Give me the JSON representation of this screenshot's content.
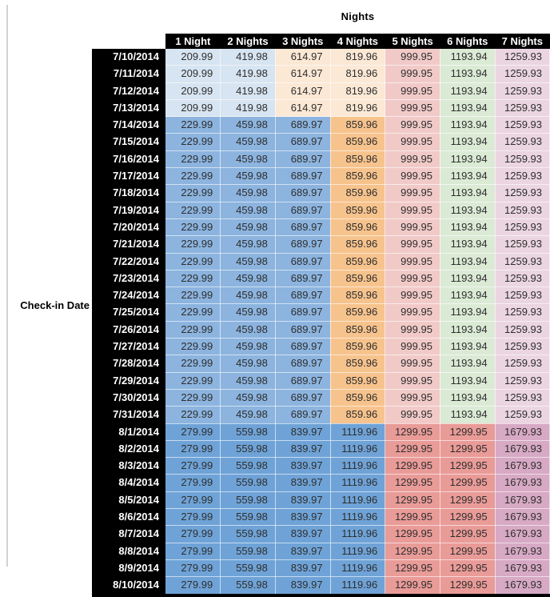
{
  "title": "Nights",
  "row_axis_label": "Check-in Date",
  "palette": {
    "header_bg": "#000000",
    "header_text": "#ffffff",
    "date_bg": "#000000",
    "date_text": "#ffffff",
    "value_text": "#2e2e2e",
    "worksheet_gridline": "#d2d2d2",
    "bands": {
      "early_july": [
        "#D7E4F1",
        "#D7E4F1",
        "#FBE8D5",
        "#FBE8D5",
        "#F1CAC8",
        "#DBEAD5",
        "#EAD5E0"
      ],
      "mid_july": [
        "#8CB4DF",
        "#8CB4DF",
        "#8CB4DF",
        "#F7C38D",
        "#F1CAC8",
        "#DBEAD5",
        "#EAD5E0"
      ],
      "august": [
        "#6FA3D7",
        "#6FA3D7",
        "#6FA3D7",
        "#6FA3D7",
        "#E99B98",
        "#E99B98",
        "#D7A9C4"
      ]
    }
  },
  "chart_data": {
    "type": "table",
    "title": "Nights",
    "row_label": "Check-in Date",
    "columns": [
      "1 Night",
      "2 Nights",
      "3 Nights",
      "4 Nights",
      "5 Nights",
      "6 Nights",
      "7 Nights"
    ],
    "rows": [
      {
        "date": "7/10/2014",
        "band": "early_july",
        "values": [
          "209.99",
          "419.98",
          "614.97",
          "819.96",
          "999.95",
          "1193.94",
          "1259.93"
        ]
      },
      {
        "date": "7/11/2014",
        "band": "early_july",
        "values": [
          "209.99",
          "419.98",
          "614.97",
          "819.96",
          "999.95",
          "1193.94",
          "1259.93"
        ]
      },
      {
        "date": "7/12/2014",
        "band": "early_july",
        "values": [
          "209.99",
          "419.98",
          "614.97",
          "819.96",
          "999.95",
          "1193.94",
          "1259.93"
        ]
      },
      {
        "date": "7/13/2014",
        "band": "early_july",
        "values": [
          "209.99",
          "419.98",
          "614.97",
          "819.96",
          "999.95",
          "1193.94",
          "1259.93"
        ]
      },
      {
        "date": "7/14/2014",
        "band": "mid_july",
        "values": [
          "229.99",
          "459.98",
          "689.97",
          "859.96",
          "999.95",
          "1193.94",
          "1259.93"
        ]
      },
      {
        "date": "7/15/2014",
        "band": "mid_july",
        "values": [
          "229.99",
          "459.98",
          "689.97",
          "859.96",
          "999.95",
          "1193.94",
          "1259.93"
        ]
      },
      {
        "date": "7/16/2014",
        "band": "mid_july",
        "values": [
          "229.99",
          "459.98",
          "689.97",
          "859.96",
          "999.95",
          "1193.94",
          "1259.93"
        ]
      },
      {
        "date": "7/17/2014",
        "band": "mid_july",
        "values": [
          "229.99",
          "459.98",
          "689.97",
          "859.96",
          "999.95",
          "1193.94",
          "1259.93"
        ]
      },
      {
        "date": "7/18/2014",
        "band": "mid_july",
        "values": [
          "229.99",
          "459.98",
          "689.97",
          "859.96",
          "999.95",
          "1193.94",
          "1259.93"
        ]
      },
      {
        "date": "7/19/2014",
        "band": "mid_july",
        "values": [
          "229.99",
          "459.98",
          "689.97",
          "859.96",
          "999.95",
          "1193.94",
          "1259.93"
        ]
      },
      {
        "date": "7/20/2014",
        "band": "mid_july",
        "values": [
          "229.99",
          "459.98",
          "689.97",
          "859.96",
          "999.95",
          "1193.94",
          "1259.93"
        ]
      },
      {
        "date": "7/21/2014",
        "band": "mid_july",
        "values": [
          "229.99",
          "459.98",
          "689.97",
          "859.96",
          "999.95",
          "1193.94",
          "1259.93"
        ]
      },
      {
        "date": "7/22/2014",
        "band": "mid_july",
        "values": [
          "229.99",
          "459.98",
          "689.97",
          "859.96",
          "999.95",
          "1193.94",
          "1259.93"
        ]
      },
      {
        "date": "7/23/2014",
        "band": "mid_july",
        "values": [
          "229.99",
          "459.98",
          "689.97",
          "859.96",
          "999.95",
          "1193.94",
          "1259.93"
        ]
      },
      {
        "date": "7/24/2014",
        "band": "mid_july",
        "values": [
          "229.99",
          "459.98",
          "689.97",
          "859.96",
          "999.95",
          "1193.94",
          "1259.93"
        ]
      },
      {
        "date": "7/25/2014",
        "band": "mid_july",
        "values": [
          "229.99",
          "459.98",
          "689.97",
          "859.96",
          "999.95",
          "1193.94",
          "1259.93"
        ]
      },
      {
        "date": "7/26/2014",
        "band": "mid_july",
        "values": [
          "229.99",
          "459.98",
          "689.97",
          "859.96",
          "999.95",
          "1193.94",
          "1259.93"
        ]
      },
      {
        "date": "7/27/2014",
        "band": "mid_july",
        "values": [
          "229.99",
          "459.98",
          "689.97",
          "859.96",
          "999.95",
          "1193.94",
          "1259.93"
        ]
      },
      {
        "date": "7/28/2014",
        "band": "mid_july",
        "values": [
          "229.99",
          "459.98",
          "689.97",
          "859.96",
          "999.95",
          "1193.94",
          "1259.93"
        ]
      },
      {
        "date": "7/29/2014",
        "band": "mid_july",
        "values": [
          "229.99",
          "459.98",
          "689.97",
          "859.96",
          "999.95",
          "1193.94",
          "1259.93"
        ]
      },
      {
        "date": "7/30/2014",
        "band": "mid_july",
        "values": [
          "229.99",
          "459.98",
          "689.97",
          "859.96",
          "999.95",
          "1193.94",
          "1259.93"
        ]
      },
      {
        "date": "7/31/2014",
        "band": "mid_july",
        "values": [
          "229.99",
          "459.98",
          "689.97",
          "859.96",
          "999.95",
          "1193.94",
          "1259.93"
        ]
      },
      {
        "date": "8/1/2014",
        "band": "august",
        "values": [
          "279.99",
          "559.98",
          "839.97",
          "1119.96",
          "1299.95",
          "1299.95",
          "1679.93"
        ]
      },
      {
        "date": "8/2/2014",
        "band": "august",
        "values": [
          "279.99",
          "559.98",
          "839.97",
          "1119.96",
          "1299.95",
          "1299.95",
          "1679.93"
        ]
      },
      {
        "date": "8/3/2014",
        "band": "august",
        "values": [
          "279.99",
          "559.98",
          "839.97",
          "1119.96",
          "1299.95",
          "1299.95",
          "1679.93"
        ]
      },
      {
        "date": "8/4/2014",
        "band": "august",
        "values": [
          "279.99",
          "559.98",
          "839.97",
          "1119.96",
          "1299.95",
          "1299.95",
          "1679.93"
        ]
      },
      {
        "date": "8/5/2014",
        "band": "august",
        "values": [
          "279.99",
          "559.98",
          "839.97",
          "1119.96",
          "1299.95",
          "1299.95",
          "1679.93"
        ]
      },
      {
        "date": "8/6/2014",
        "band": "august",
        "values": [
          "279.99",
          "559.98",
          "839.97",
          "1119.96",
          "1299.95",
          "1299.95",
          "1679.93"
        ]
      },
      {
        "date": "8/7/2014",
        "band": "august",
        "values": [
          "279.99",
          "559.98",
          "839.97",
          "1119.96",
          "1299.95",
          "1299.95",
          "1679.93"
        ]
      },
      {
        "date": "8/8/2014",
        "band": "august",
        "values": [
          "279.99",
          "559.98",
          "839.97",
          "1119.96",
          "1299.95",
          "1299.95",
          "1679.93"
        ]
      },
      {
        "date": "8/9/2014",
        "band": "august",
        "values": [
          "279.99",
          "559.98",
          "839.97",
          "1119.96",
          "1299.95",
          "1299.95",
          "1679.93"
        ]
      },
      {
        "date": "8/10/2014",
        "band": "august",
        "values": [
          "279.99",
          "559.98",
          "839.97",
          "1119.96",
          "1299.95",
          "1299.95",
          "1679.93"
        ]
      }
    ]
  }
}
